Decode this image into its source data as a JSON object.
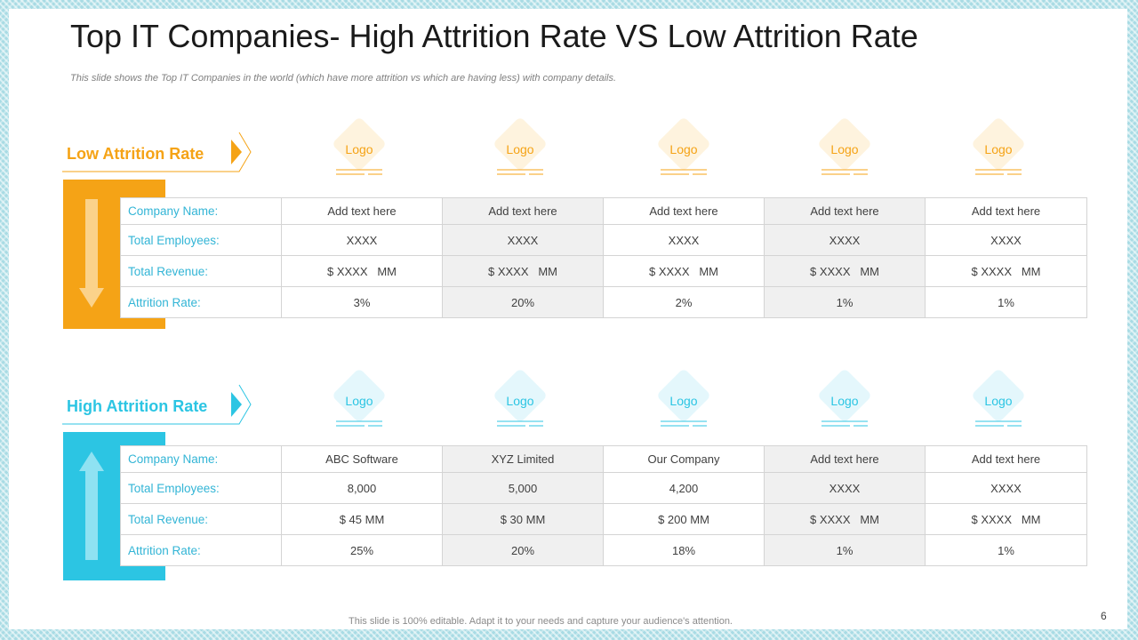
{
  "slide": {
    "title": "Top IT Companies- High Attrition Rate VS Low Attrition Rate",
    "subtitle": "This slide shows the Top IT Companies in the world (which have more attrition vs which are having less) with company details.",
    "page_number": "6",
    "footer": "This slide is 100% editable. Adapt it to your needs and capture your audience's attention."
  },
  "colors": {
    "low_accent": "#f5a316",
    "high_accent": "#2cc5e3",
    "row_label": "#33b5d6"
  },
  "low_section": {
    "label": "Low Attrition Rate",
    "icon": "arrow-down-icon",
    "logos": [
      "Logo",
      "Logo",
      "Logo",
      "Logo",
      "Logo"
    ],
    "row_labels": [
      "Company Name:",
      "Total Employees:",
      "Total Revenue:",
      "Attrition Rate:"
    ],
    "rows": [
      [
        "Add text here",
        "Add text here",
        "Add text here",
        "Add text here",
        "Add text here"
      ],
      [
        "XXXX",
        "XXXX",
        "XXXX",
        "XXXX",
        "XXXX"
      ],
      [
        "$ XXXX   MM",
        "$ XXXX   MM",
        "$ XXXX   MM",
        "$ XXXX   MM",
        "$ XXXX   MM"
      ],
      [
        "3%",
        "20%",
        "2%",
        "1%",
        "1%"
      ]
    ]
  },
  "high_section": {
    "label": "High Attrition Rate",
    "icon": "arrow-up-icon",
    "logos": [
      "Logo",
      "Logo",
      "Logo",
      "Logo",
      "Logo"
    ],
    "row_labels": [
      "Company Name:",
      "Total Employees:",
      "Total Revenue:",
      "Attrition Rate:"
    ],
    "rows": [
      [
        "ABC Software",
        "XYZ Limited",
        "Our Company",
        "Add text here",
        "Add text here"
      ],
      [
        "8,000",
        "5,000",
        "4,200",
        "XXXX",
        "XXXX"
      ],
      [
        "$ 45 MM",
        "$ 30 MM",
        "$ 200 MM",
        "$ XXXX   MM",
        "$ XXXX   MM"
      ],
      [
        "25%",
        "20%",
        "18%",
        "1%",
        "1%"
      ]
    ]
  }
}
